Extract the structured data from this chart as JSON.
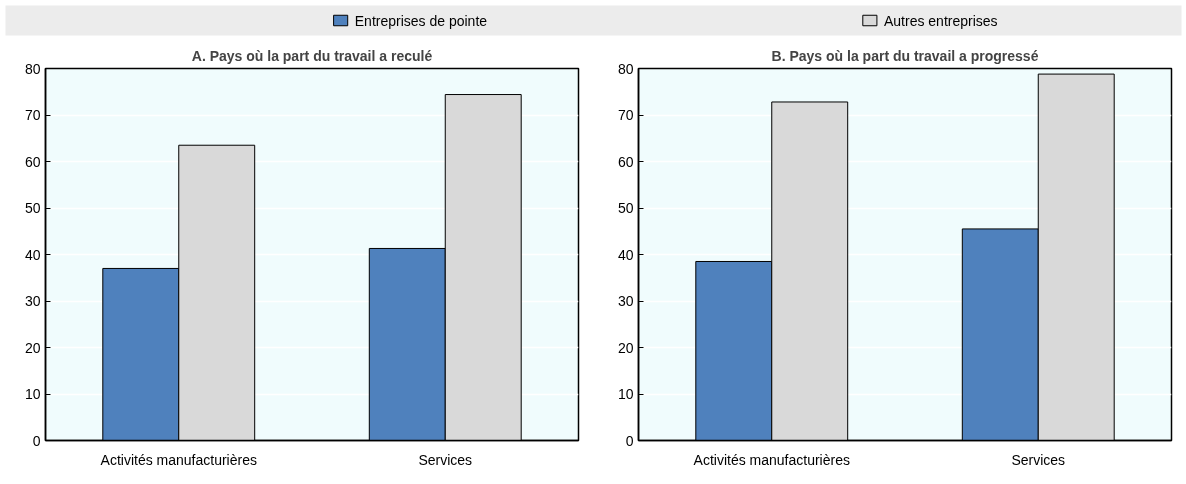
{
  "chart_data": [
    {
      "type": "bar",
      "title": "A. Pays où la part du travail a reculé",
      "categories": [
        "Activités manufacturières",
        "Services"
      ],
      "series": [
        {
          "name": "Entreprises de pointe",
          "color": "#4f81bd",
          "values": [
            37,
            41.3
          ]
        },
        {
          "name": "Autres entreprises",
          "color": "#d9d9d9",
          "values": [
            63.5,
            74.4
          ]
        }
      ],
      "ylim": [
        0,
        80
      ],
      "yticks": [
        0,
        10,
        20,
        30,
        40,
        50,
        60,
        70,
        80
      ],
      "grid": "y",
      "legend": "top"
    },
    {
      "type": "bar",
      "title": "B. Pays où la part du travail a progressé",
      "categories": [
        "Activités manufacturières",
        "Services"
      ],
      "series": [
        {
          "color": "#4f81bd",
          "values": [
            38.5,
            45.5
          ]
        },
        {
          "color": "#d9d9d9",
          "values": [
            72.8,
            78.8
          ]
        }
      ],
      "ylim": [
        0,
        80
      ],
      "yticks": [
        0,
        10,
        20,
        30,
        40,
        50,
        60,
        70,
        80
      ],
      "grid": "y"
    }
  ]
}
